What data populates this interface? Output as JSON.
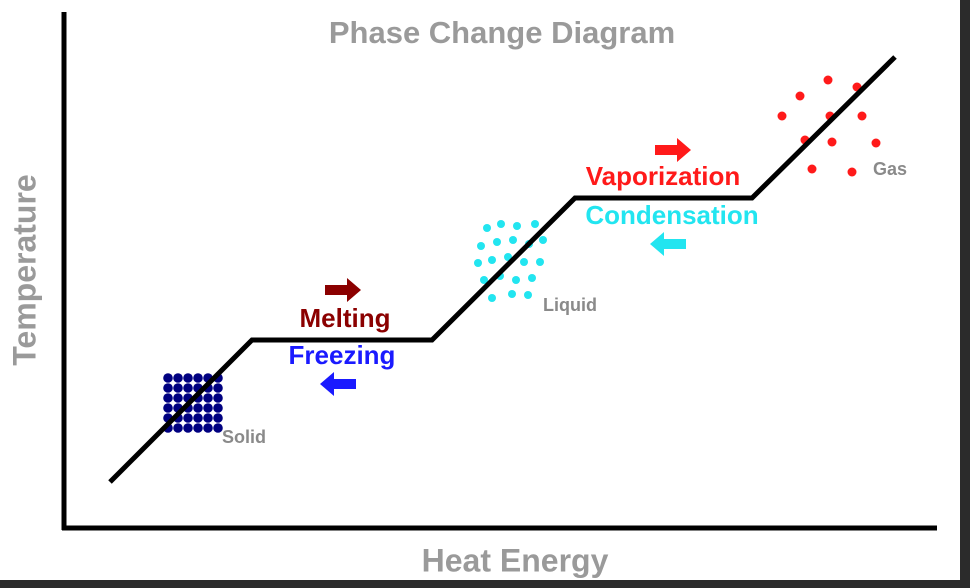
{
  "title": "Phase Change Diagram",
  "axes": {
    "x_label": "Heat Energy",
    "y_label": "Temperature"
  },
  "states": {
    "solid": "Solid",
    "liquid": "Liquid",
    "gas": "Gas"
  },
  "transitions": {
    "melting": "Melting",
    "freezing": "Freezing",
    "vaporization": "Vaporization",
    "condensation": "Condensation"
  }
}
